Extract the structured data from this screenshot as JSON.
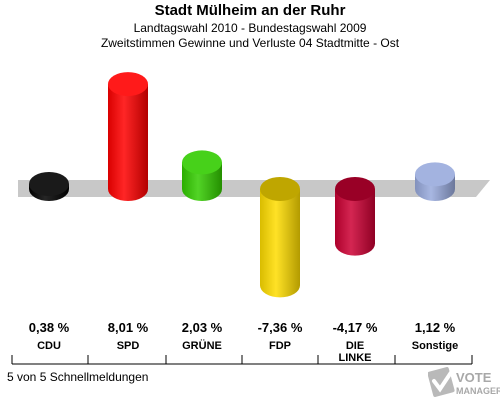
{
  "header": {
    "title": "Stadt Mülheim an der Ruhr",
    "subtitle_1": "Landtagswahl 2010 - Bundestagswahl 2009",
    "subtitle_2": "Zweitstimmen Gewinne und Verluste 04 Stadtmitte - Ost"
  },
  "footer": {
    "note": "5 von 5 Schnellmeldungen",
    "logo_text_1": "VOTE",
    "logo_text_2": "MANAGER"
  },
  "chart_data": {
    "type": "bar",
    "title": "Stadt Mülheim an der Ruhr",
    "subtitle": "Landtagswahl 2010 - Bundestagswahl 2009 / Zweitstimmen Gewinne und Verluste 04 Stadtmitte - Ost",
    "xlabel": "",
    "ylabel": "",
    "categories": [
      "CDU",
      "SPD",
      "GRÜNE",
      "FDP",
      "DIE LINKE",
      "Sonstige"
    ],
    "category_lines": [
      [
        "CDU"
      ],
      [
        "SPD"
      ],
      [
        "GRÜNE"
      ],
      [
        "FDP"
      ],
      [
        "DIE",
        "LINKE"
      ],
      [
        "Sonstige"
      ]
    ],
    "values": [
      0.38,
      8.01,
      2.03,
      -7.36,
      -4.17,
      1.12
    ],
    "value_labels": [
      "0,38 %",
      "8,01 %",
      "2,03 %",
      "-7,36 %",
      "-4,17 %",
      "1,12 %"
    ],
    "colors": [
      "#000000",
      "#ff0000",
      "#33cc00",
      "#ffdd00",
      "#cc0033",
      "#99aadd"
    ],
    "zero_band_color": "#c8c8c8",
    "grid": false,
    "legend": "none"
  }
}
